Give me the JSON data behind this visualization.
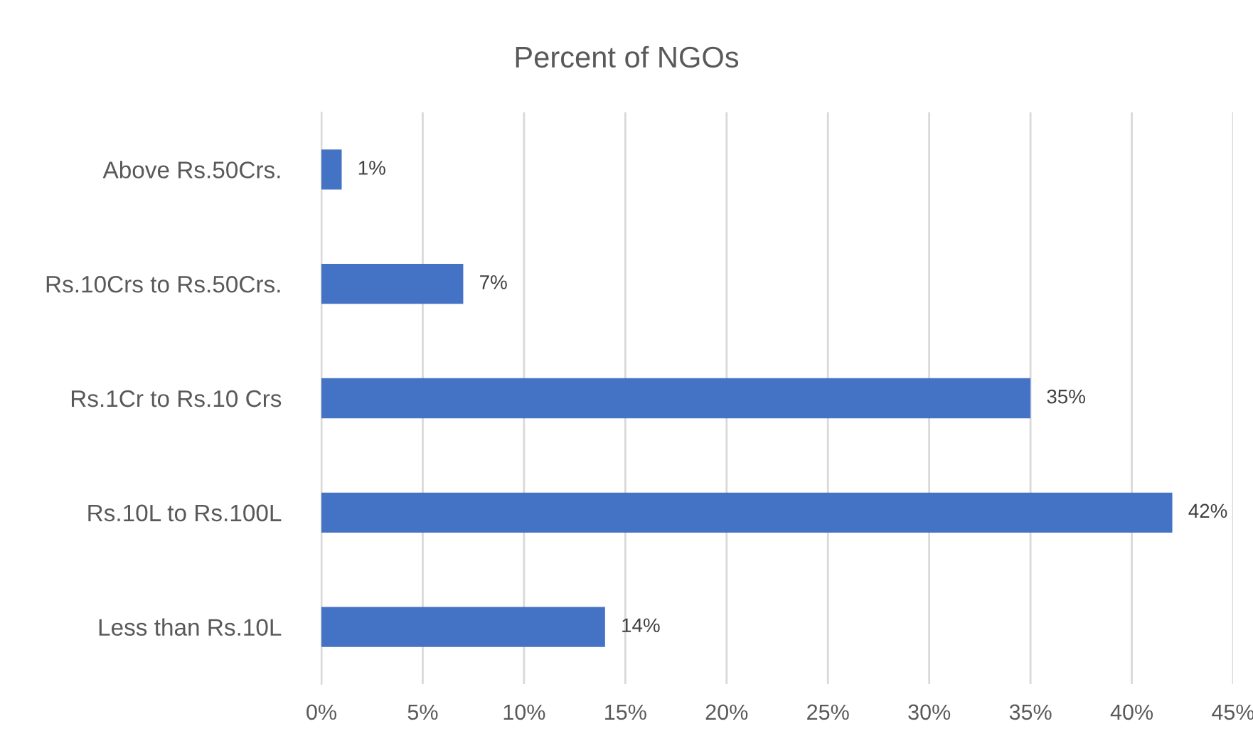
{
  "chart_data": {
    "type": "bar",
    "orientation": "horizontal",
    "title": "Percent of NGOs",
    "categories": [
      "Above Rs.50Crs.",
      "Rs.10Crs to Rs.50Crs.",
      "Rs.1Cr to Rs.10 Crs",
      "Rs.10L to Rs.100L",
      "Less than Rs.10L"
    ],
    "values": [
      1,
      7,
      35,
      42,
      14
    ],
    "value_labels": [
      "1%",
      "7%",
      "35%",
      "42%",
      "14%"
    ],
    "color": "#4472c4",
    "xlim": [
      0,
      45
    ],
    "xticks": [
      {
        "value": 0,
        "label": "0%"
      },
      {
        "value": 5,
        "label": "5%"
      },
      {
        "value": 10,
        "label": "10%"
      },
      {
        "value": 15,
        "label": "15%"
      },
      {
        "value": 20,
        "label": "20%"
      },
      {
        "value": 25,
        "label": "25%"
      },
      {
        "value": 30,
        "label": "30%"
      },
      {
        "value": 35,
        "label": "35%"
      },
      {
        "value": 40,
        "label": "40%"
      },
      {
        "value": 45,
        "label": "45%"
      }
    ],
    "grid": "x"
  }
}
